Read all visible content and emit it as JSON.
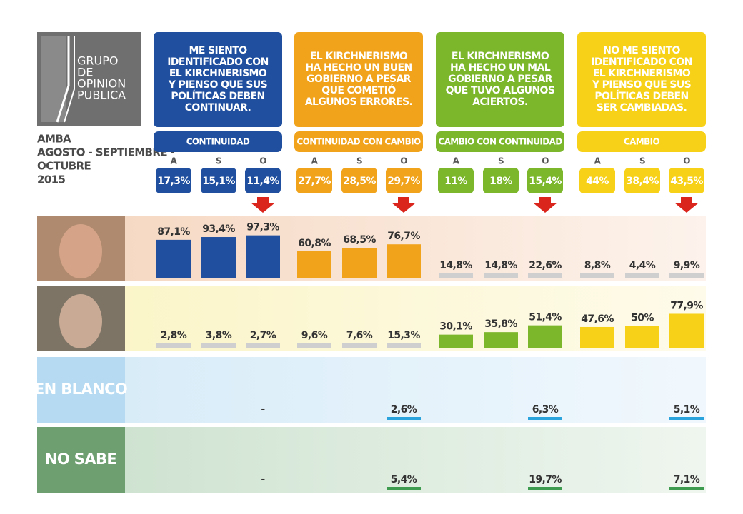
{
  "logo": {
    "lines": [
      "GRUPO",
      "DE",
      "OPINION",
      "PUBLICA"
    ]
  },
  "meta": [
    "AMBA",
    "AGOSTO - SEPTIEMBRE -",
    "OCTUBRE",
    "2015"
  ],
  "groups": [
    {
      "description": [
        "ME SIENTO",
        "IDENTIFICADO CON",
        "EL KIRCHNERISMO",
        "Y PIENSO QUE SUS",
        "POLÍTICAS DEBEN",
        "CONTINUAR."
      ],
      "label": "CONTINUIDAD",
      "color": "#1f4f9e",
      "text_color": "#ffffff",
      "months": [
        "A",
        "S",
        "O"
      ],
      "values": [
        17.3,
        15.1,
        11.4
      ],
      "value_labels": [
        "17,3%",
        "15,1%",
        "11,4%"
      ]
    },
    {
      "description": [
        "EL KIRCHNERISMO",
        "HA HECHO UN BUEN",
        "GOBIERNO A PESAR",
        "QUE COMETIÓ",
        "ALGUNOS ERRORES."
      ],
      "label": "CONTINUIDAD CON CAMBIO",
      "color": "#f0a31b",
      "text_color": "#ffffff",
      "months": [
        "A",
        "S",
        "O"
      ],
      "values": [
        27.7,
        28.5,
        29.7
      ],
      "value_labels": [
        "27,7%",
        "28,5%",
        "29,7%"
      ]
    },
    {
      "description": [
        "EL KIRCHNERISMO",
        "HA HECHO UN MAL",
        "GOBIERNO A PESAR",
        "QUE TUVO ALGUNOS",
        "ACIERTOS."
      ],
      "label": "CAMBIO CON CONTINUIDAD",
      "color": "#7bb62b",
      "text_color": "#ffffff",
      "months": [
        "A",
        "S",
        "O"
      ],
      "values": [
        11,
        18,
        15.4
      ],
      "value_labels": [
        "11%",
        "18%",
        "15,4%"
      ]
    },
    {
      "description": [
        "NO ME SIENTO",
        "IDENTIFICADO CON",
        "EL KIRCHNERISMO",
        "Y PIENSO QUE SUS",
        "POLÍTICAS DEBEN",
        "SER CAMBIADAS."
      ],
      "label": "CAMBIO",
      "color": "#f7d117",
      "text_color": "#ffffff",
      "months": [
        "A",
        "S",
        "O"
      ],
      "values": [
        44,
        38.4,
        43.5
      ],
      "value_labels": [
        "44%",
        "38,4%",
        "43,5%"
      ]
    }
  ],
  "rows": [
    {
      "bars": "proportional",
      "muted_color": "#cfcfcf",
      "values": [
        87.1,
        93.4,
        97.3,
        60.8,
        68.5,
        76.7,
        14.8,
        14.8,
        22.6,
        8.8,
        4.4,
        9.9
      ],
      "value_labels": [
        "87,1%",
        "93,4%",
        "97,3%",
        "60,8%",
        "68,5%",
        "76,7%",
        "14,8%",
        "14,8%",
        "22,6%",
        "8,8%",
        "4,4%",
        "9,9%"
      ],
      "colors": [
        "#1f4f9e",
        "#1f4f9e",
        "#1f4f9e",
        "#f0a31b",
        "#f0a31b",
        "#f0a31b",
        "#cfcfcf",
        "#cfcfcf",
        "#cfcfcf",
        "#cfcfcf",
        "#cfcfcf",
        "#cfcfcf"
      ]
    },
    {
      "bars": "proportional",
      "muted_color": "#cfcfcf",
      "values": [
        2.8,
        3.8,
        2.7,
        9.6,
        7.6,
        15.3,
        30.1,
        35.8,
        51.4,
        47.6,
        50,
        77.9
      ],
      "value_labels": [
        "2,8%",
        "3,8%",
        "2,7%",
        "9,6%",
        "7,6%",
        "15,3%",
        "30,1%",
        "35,8%",
        "51,4%",
        "47,6%",
        "50%",
        "77,9%"
      ],
      "colors": [
        "#cfcfcf",
        "#cfcfcf",
        "#cfcfcf",
        "#cfcfcf",
        "#cfcfcf",
        "#cfcfcf",
        "#7bb62b",
        "#7bb62b",
        "#7bb62b",
        "#f7d117",
        "#f7d117",
        "#f7d117"
      ]
    },
    {
      "name": "EN BLANCO",
      "bars": "underline",
      "values": [
        null,
        null,
        null,
        null,
        null,
        2.6,
        null,
        null,
        6.3,
        null,
        null,
        5.1
      ],
      "value_labels": [
        null,
        null,
        "-",
        null,
        null,
        "2,6%",
        null,
        null,
        "6,3%",
        null,
        null,
        "5,1%"
      ],
      "colors": [
        null,
        null,
        null,
        null,
        null,
        "#2aa3dc",
        null,
        null,
        "#2aa3dc",
        null,
        null,
        "#2aa3dc"
      ]
    },
    {
      "name": "NO SABE",
      "bars": "underline",
      "values": [
        null,
        null,
        null,
        null,
        null,
        5.4,
        null,
        null,
        19.7,
        null,
        null,
        7.1
      ],
      "value_labels": [
        null,
        null,
        "-",
        null,
        null,
        "5,4%",
        null,
        null,
        "19,7%",
        null,
        null,
        "7,1%"
      ],
      "colors": [
        null,
        null,
        null,
        null,
        null,
        "#3d9b50",
        null,
        null,
        "#3d9b50",
        null,
        null,
        "#3d9b50"
      ]
    }
  ]
}
